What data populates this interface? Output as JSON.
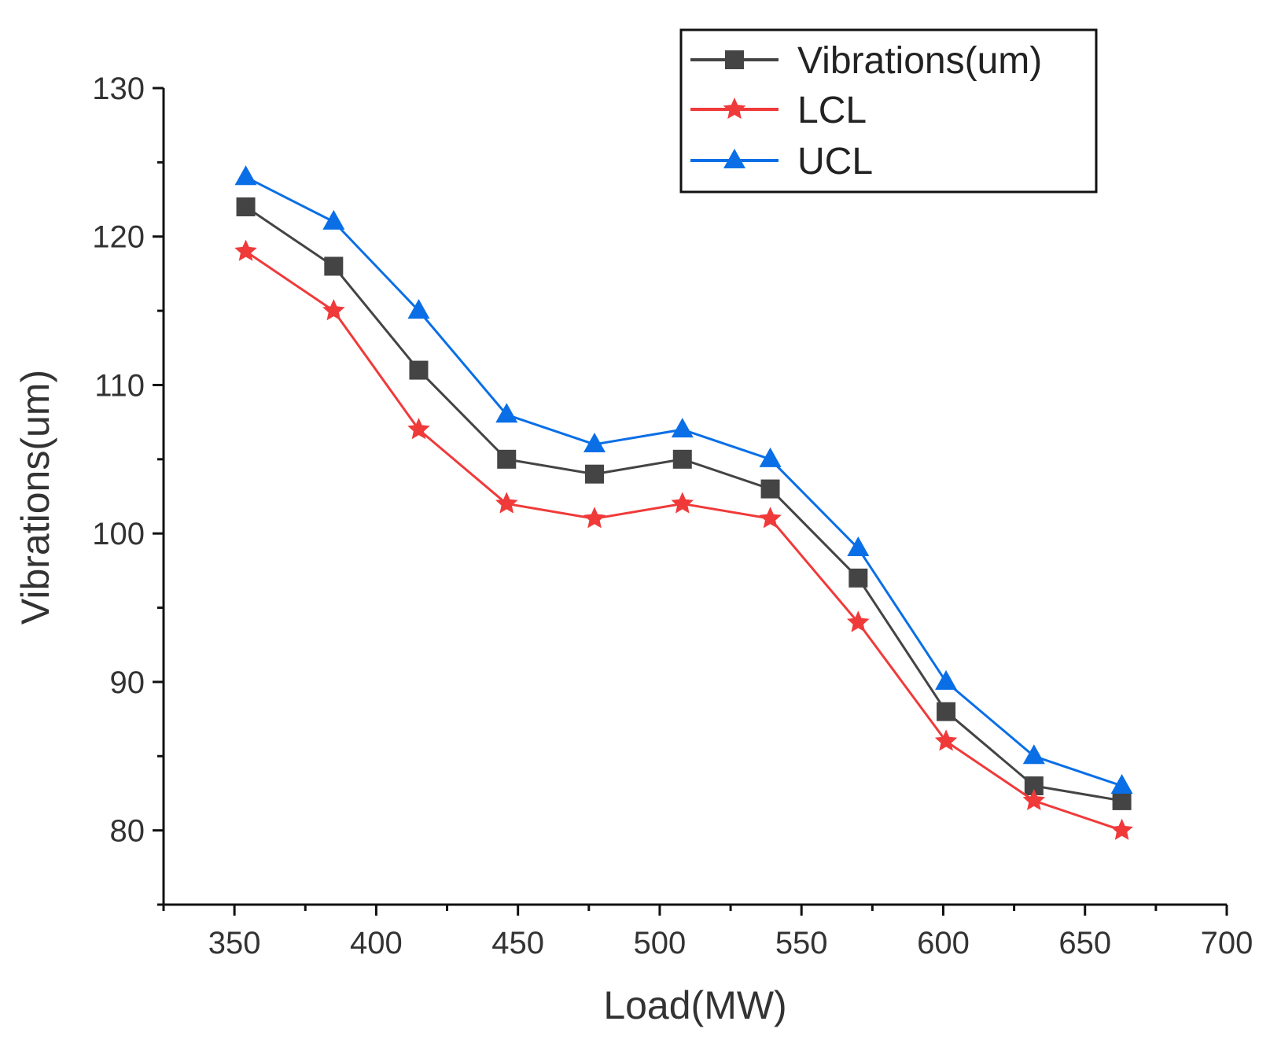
{
  "chart_data": {
    "type": "line",
    "title": "",
    "xlabel": "Load(MW)",
    "ylabel": "Vibrations(um)",
    "xlim": [
      325,
      700
    ],
    "ylim": [
      75,
      130
    ],
    "xticks": [
      350,
      400,
      450,
      500,
      550,
      600,
      650,
      700
    ],
    "yticks": [
      80,
      90,
      100,
      110,
      120,
      130
    ],
    "legend_position": "top-right",
    "grid": false,
    "x": [
      354,
      385,
      415,
      446,
      477,
      508,
      539,
      570,
      601,
      632,
      663
    ],
    "series": [
      {
        "name": "Vibrations(um)",
        "color": "#444444",
        "marker": "square",
        "values": [
          122,
          118,
          111,
          105,
          104,
          105,
          103,
          97,
          88,
          83,
          82
        ]
      },
      {
        "name": "LCL",
        "color": "#f03a3a",
        "marker": "star",
        "values": [
          119,
          115,
          107,
          102,
          101,
          102,
          101,
          94,
          86,
          82,
          80
        ]
      },
      {
        "name": "UCL",
        "color": "#0a6fe6",
        "marker": "triangle",
        "values": [
          124,
          121,
          115,
          108,
          106,
          107,
          105,
          99,
          90,
          85,
          83
        ]
      }
    ]
  }
}
